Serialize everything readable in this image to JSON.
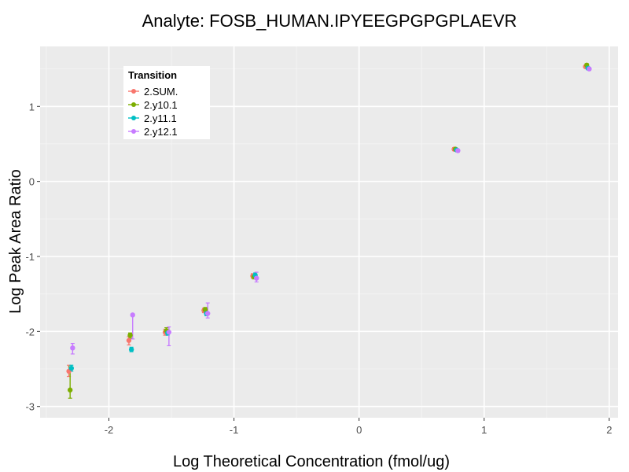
{
  "chart_data": {
    "type": "scatter",
    "title": "Analyte: FOSB_HUMAN.IPYEEGPGPGPLAEVR",
    "xlabel": "Log Theoretical Concentration (fmol/ug)",
    "ylabel": "Log Peak Area Ratio",
    "xlim": [
      -2.55,
      2.07
    ],
    "ylim": [
      -3.15,
      1.8
    ],
    "x_ticks": [
      -2,
      -1,
      0,
      1,
      2
    ],
    "x_tick_labels": [
      "-2",
      "-1",
      "0",
      "1",
      "2"
    ],
    "y_ticks": [
      -3,
      -2,
      -1,
      0,
      1
    ],
    "y_tick_labels": [
      "-3",
      "-2",
      "-1",
      "0",
      "1"
    ],
    "legend": {
      "title": "Transition",
      "position": "top-left"
    },
    "series": [
      {
        "name": "2.SUM.",
        "color": "#F8766D",
        "points": [
          {
            "x": -2.32,
            "y": -2.53,
            "ymin": -2.6,
            "ymax": -2.45
          },
          {
            "x": -1.84,
            "y": -2.12,
            "ymin": -2.18,
            "ymax": -2.07
          },
          {
            "x": -1.55,
            "y": -2.01,
            "ymin": -2.05,
            "ymax": -1.97
          },
          {
            "x": -1.24,
            "y": -1.72,
            "ymin": -1.75,
            "ymax": -1.69
          },
          {
            "x": -0.85,
            "y": -1.26,
            "ymin": -1.29,
            "ymax": -1.23
          },
          {
            "x": 0.76,
            "y": 0.43,
            "ymin": 0.41,
            "ymax": 0.45
          },
          {
            "x": 1.81,
            "y": 1.53,
            "ymin": 1.51,
            "ymax": 1.55
          }
        ]
      },
      {
        "name": "2.y10.1",
        "color": "#7CAE00",
        "points": [
          {
            "x": -2.31,
            "y": -2.78,
            "ymin": -2.89,
            "ymax": -2.47
          },
          {
            "x": -1.83,
            "y": -2.05,
            "ymin": -2.09,
            "ymax": -2.02
          },
          {
            "x": -1.54,
            "y": -1.99,
            "ymin": -2.03,
            "ymax": -1.95
          },
          {
            "x": -1.23,
            "y": -1.71,
            "ymin": -1.74,
            "ymax": -1.68
          },
          {
            "x": -0.84,
            "y": -1.27,
            "ymin": -1.3,
            "ymax": -1.24
          },
          {
            "x": 0.77,
            "y": 0.43,
            "ymin": 0.41,
            "ymax": 0.45
          },
          {
            "x": 1.82,
            "y": 1.55,
            "ymin": 1.53,
            "ymax": 1.57
          }
        ]
      },
      {
        "name": "2.y11.1",
        "color": "#00BFC4",
        "points": [
          {
            "x": -2.3,
            "y": -2.49,
            "ymin": -2.53,
            "ymax": -2.45
          },
          {
            "x": -1.82,
            "y": -2.24,
            "ymin": -2.27,
            "ymax": -2.21
          },
          {
            "x": -1.53,
            "y": -2.02,
            "ymin": -2.05,
            "ymax": -1.98
          },
          {
            "x": -1.22,
            "y": -1.76,
            "ymin": -1.79,
            "ymax": -1.73
          },
          {
            "x": -0.83,
            "y": -1.25,
            "ymin": -1.28,
            "ymax": -1.22
          },
          {
            "x": 0.78,
            "y": 0.42,
            "ymin": 0.4,
            "ymax": 0.44
          },
          {
            "x": 1.83,
            "y": 1.51,
            "ymin": 1.49,
            "ymax": 1.53
          }
        ]
      },
      {
        "name": "2.y12.1",
        "color": "#C77CFF",
        "points": [
          {
            "x": -2.29,
            "y": -2.22,
            "ymin": -2.3,
            "ymax": -2.16
          },
          {
            "x": -1.81,
            "y": -1.78,
            "ymin": -2.1,
            "ymax": -1.78
          },
          {
            "x": -1.52,
            "y": -2.01,
            "ymin": -2.19,
            "ymax": -1.94
          },
          {
            "x": -1.21,
            "y": -1.76,
            "ymin": -1.82,
            "ymax": -1.62
          },
          {
            "x": -0.82,
            "y": -1.29,
            "ymin": -1.34,
            "ymax": -1.21
          },
          {
            "x": 0.79,
            "y": 0.41,
            "ymin": 0.39,
            "ymax": 0.43
          },
          {
            "x": 1.84,
            "y": 1.5,
            "ymin": 1.48,
            "ymax": 1.52
          }
        ]
      }
    ]
  }
}
